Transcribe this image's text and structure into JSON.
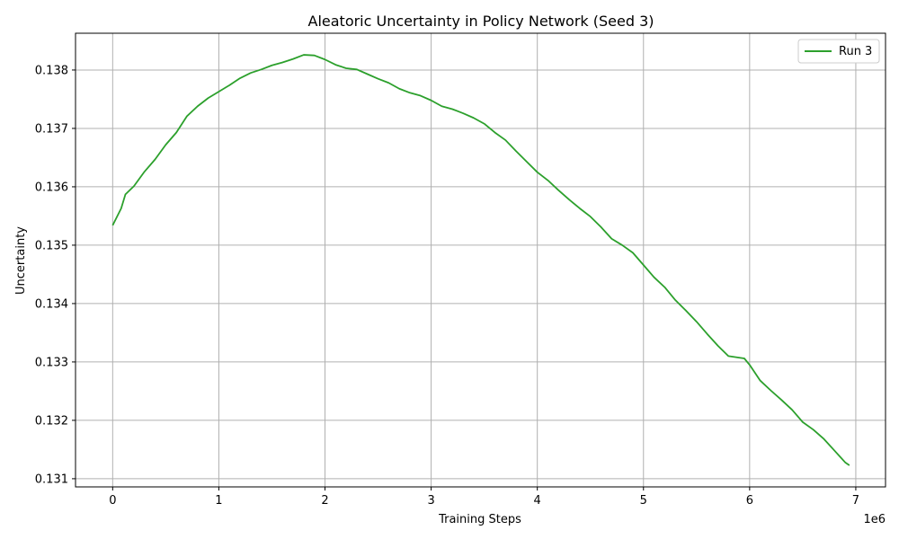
{
  "chart_data": {
    "type": "line",
    "title": "Aleatoric Uncertainty in Policy Network (Seed 3)",
    "xlabel": "Training Steps",
    "ylabel": "Uncertainty",
    "x_offset_label": "1e6",
    "xlim": [
      -350000,
      7280000
    ],
    "ylim": [
      0.13086,
      0.13863
    ],
    "x_ticks": [
      0,
      1000000,
      2000000,
      3000000,
      4000000,
      5000000,
      6000000,
      7000000
    ],
    "x_tick_labels": [
      "0",
      "1",
      "2",
      "3",
      "4",
      "5",
      "6",
      "7"
    ],
    "y_ticks": [
      0.131,
      0.132,
      0.133,
      0.134,
      0.135,
      0.136,
      0.137,
      0.138
    ],
    "y_tick_labels": [
      "0.131",
      "0.132",
      "0.133",
      "0.134",
      "0.135",
      "0.136",
      "0.137",
      "0.138"
    ],
    "grid": true,
    "legend_position": "top-right",
    "series": [
      {
        "name": "Run 3",
        "color": "#2ca02c",
        "x": [
          0,
          80000,
          120000,
          200000,
          300000,
          400000,
          500000,
          600000,
          700000,
          800000,
          900000,
          1000000,
          1100000,
          1200000,
          1300000,
          1400000,
          1500000,
          1600000,
          1700000,
          1800000,
          1900000,
          2000000,
          2100000,
          2200000,
          2300000,
          2400000,
          2500000,
          2600000,
          2700000,
          2800000,
          2900000,
          3000000,
          3100000,
          3200000,
          3300000,
          3400000,
          3500000,
          3600000,
          3700000,
          3800000,
          3900000,
          4000000,
          4100000,
          4200000,
          4300000,
          4400000,
          4500000,
          4600000,
          4700000,
          4800000,
          4900000,
          5000000,
          5100000,
          5200000,
          5300000,
          5400000,
          5500000,
          5600000,
          5700000,
          5800000,
          5950000,
          6000000,
          6100000,
          6200000,
          6300000,
          6400000,
          6500000,
          6600000,
          6700000,
          6800000,
          6900000,
          6940000
        ],
        "y": [
          0.13534,
          0.13563,
          0.13587,
          0.13601,
          0.13626,
          0.13647,
          0.13672,
          0.13693,
          0.13721,
          0.13738,
          0.13752,
          0.13763,
          0.13774,
          0.13786,
          0.13795,
          0.13801,
          0.13808,
          0.13813,
          0.13819,
          0.13826,
          0.13825,
          0.13818,
          0.13809,
          0.13803,
          0.13801,
          0.13793,
          0.13785,
          0.13778,
          0.13768,
          0.13761,
          0.13756,
          0.13748,
          0.13738,
          0.13733,
          0.13726,
          0.13718,
          0.13708,
          0.13693,
          0.1368,
          0.13661,
          0.13643,
          0.13625,
          0.13611,
          0.13594,
          0.13578,
          0.13563,
          0.13549,
          0.13531,
          0.13511,
          0.135,
          0.13487,
          0.13466,
          0.13445,
          0.13428,
          0.13406,
          0.13388,
          0.13369,
          0.13348,
          0.13328,
          0.1331,
          0.13306,
          0.13295,
          0.13268,
          0.13251,
          0.13235,
          0.13218,
          0.13197,
          0.13184,
          0.13168,
          0.13148,
          0.13128,
          0.13123
        ]
      }
    ]
  }
}
